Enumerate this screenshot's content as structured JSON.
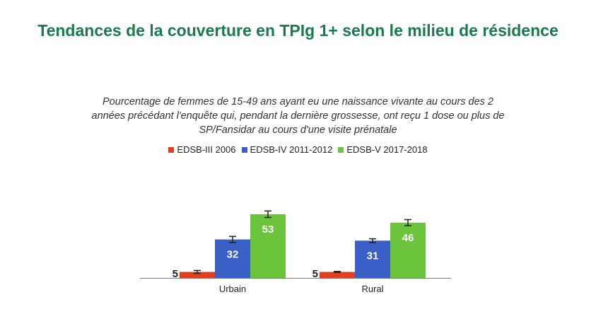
{
  "chart_data": {
    "type": "bar",
    "title": "Tendances de la couverture en TPIg 1+ selon le milieu de résidence",
    "subtitle": "Pourcentage de femmes de 15-49 ans ayant eu une naissance vivante au cours des 2 années précédant l'enquête qui, pendant la dernière grossesse, ont reçu 1 dose ou plus de SP/Fansidar au cours d'une visite prénatale",
    "categories": [
      "Urbain",
      "Rural"
    ],
    "series": [
      {
        "name": "EDSB-III 2006",
        "color": "#e0401f",
        "values": [
          5,
          5
        ],
        "labels": [
          "5",
          "5"
        ],
        "errors": [
          1.2,
          0.4
        ]
      },
      {
        "name": "EDSB-IV 2011-2012",
        "color": "#3a5fc6",
        "values": [
          32,
          31
        ],
        "labels": [
          "32",
          "31"
        ],
        "errors": [
          2.5,
          1.6
        ]
      },
      {
        "name": "EDSB-V 2017-2018",
        "color": "#6cc43d",
        "values": [
          53,
          46
        ],
        "labels": [
          "53",
          "46"
        ],
        "errors": [
          2.7,
          2.5
        ]
      }
    ],
    "ylim": [
      0,
      60
    ],
    "grid": false,
    "legend_position": "top-center"
  }
}
